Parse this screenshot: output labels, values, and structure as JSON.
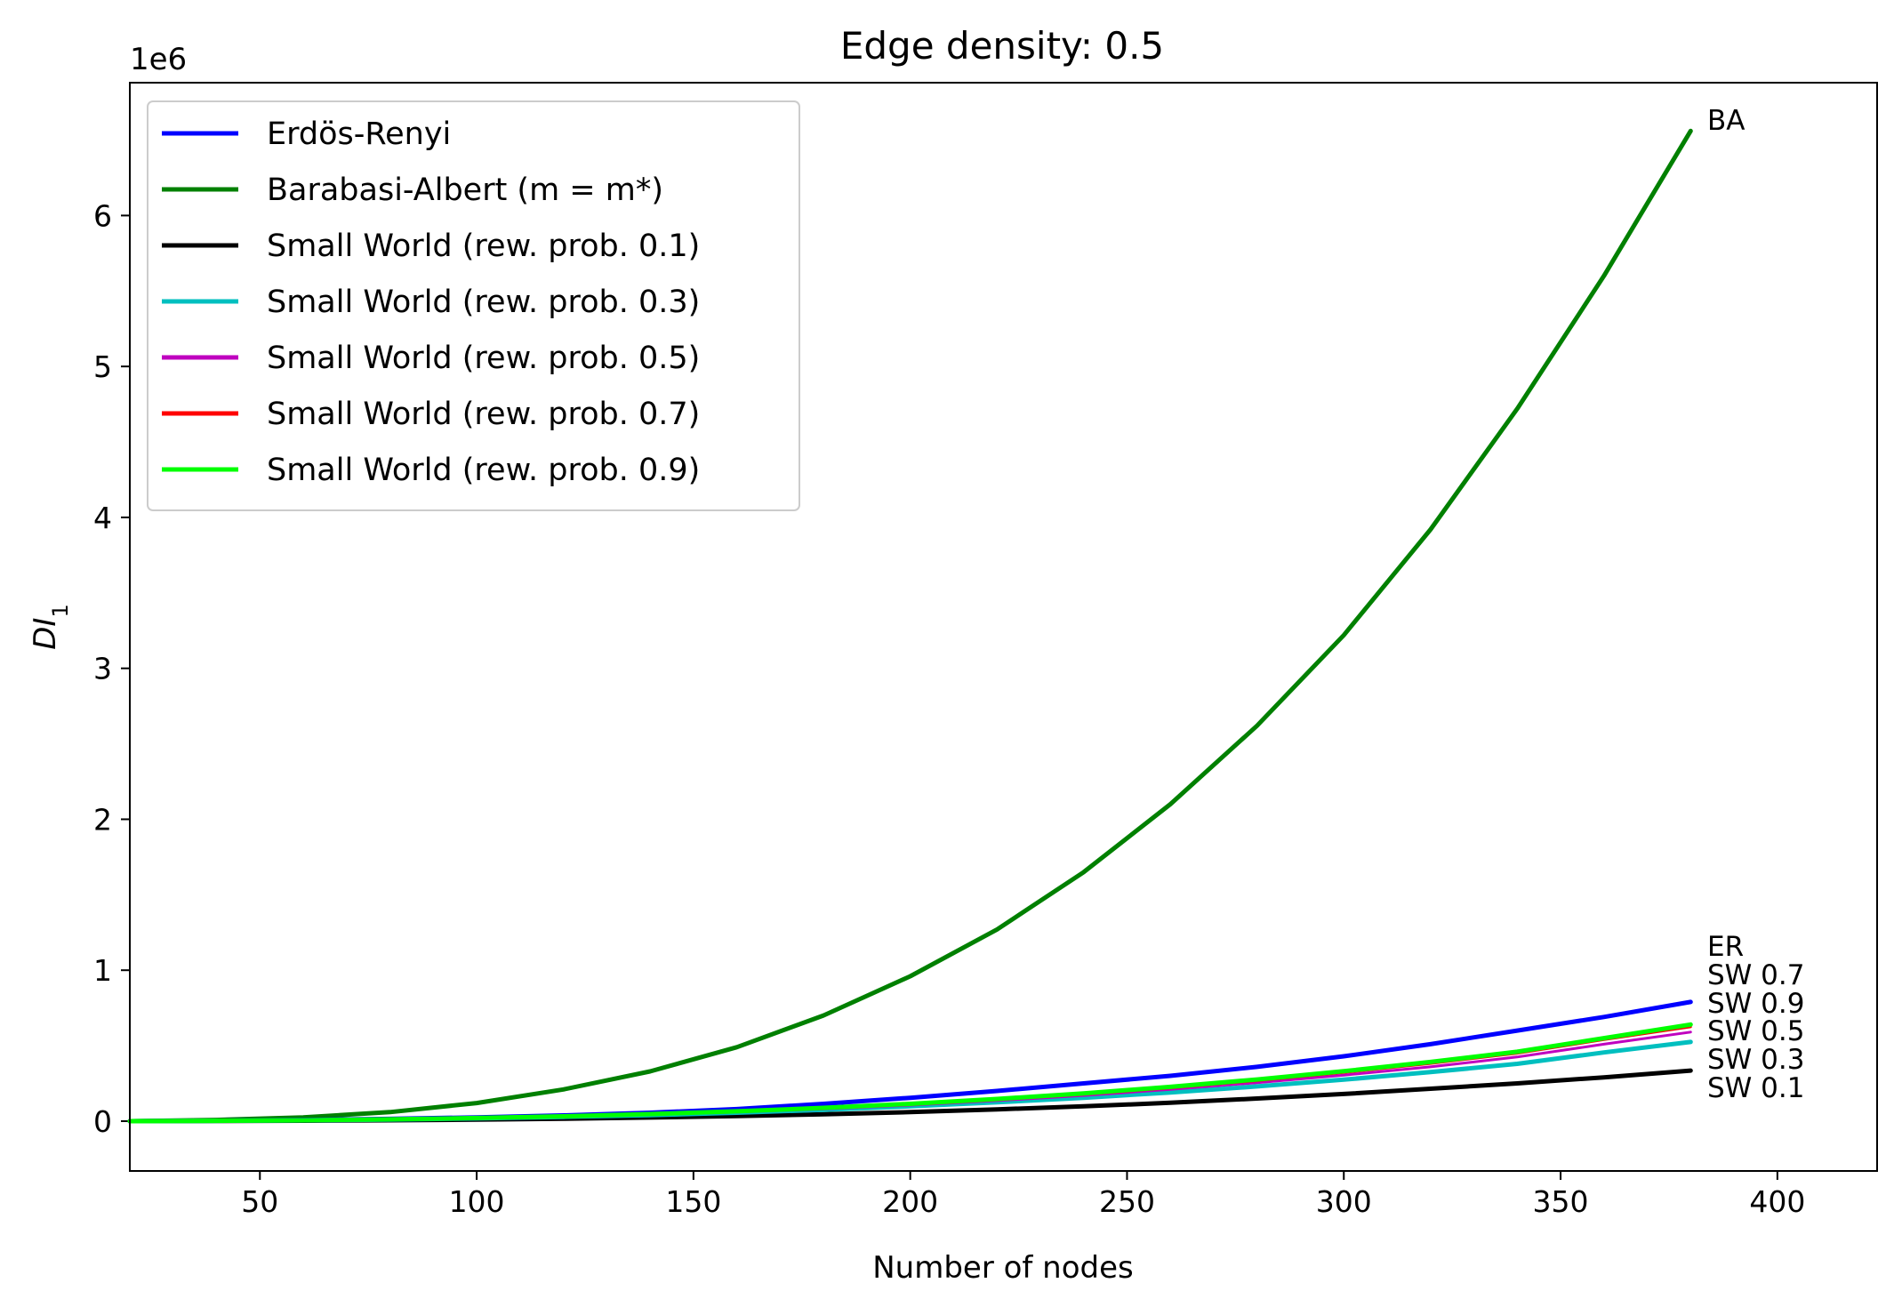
{
  "chart_data": {
    "type": "line",
    "title": "Edge density: 0.5",
    "xlabel": "Number of nodes",
    "ylabel": "DI",
    "ylabel_subscript": "1",
    "y_offset_text": "1e6",
    "xlim": [
      20,
      423
    ],
    "ylim": [
      -330000,
      6880000
    ],
    "x_ticks": [
      50,
      100,
      150,
      200,
      250,
      300,
      350,
      400
    ],
    "y_ticks": [
      0,
      1,
      2,
      3,
      4,
      5,
      6
    ],
    "y_tick_scale": 1000000,
    "legend_position": "upper-left",
    "x": [
      20,
      40,
      60,
      80,
      100,
      120,
      140,
      160,
      180,
      200,
      220,
      240,
      260,
      280,
      300,
      320,
      340,
      360,
      380
    ],
    "series": [
      {
        "name": "Erdös-Renyi",
        "color": "#0000ff",
        "values": [
          0,
          3000,
          8000,
          15000,
          25000,
          38000,
          56000,
          80000,
          115000,
          155000,
          200000,
          250000,
          300000,
          360000,
          430000,
          510000,
          600000,
          690000,
          790000
        ]
      },
      {
        "name": "Barabasi-Albert (m = m*)",
        "color": "#008000",
        "values": [
          0,
          8000,
          25000,
          60000,
          120000,
          210000,
          330000,
          490000,
          700000,
          960000,
          1270000,
          1650000,
          2100000,
          2620000,
          3220000,
          3920000,
          4720000,
          5600000,
          6560000
        ]
      },
      {
        "name": "Small World (rew. prob. 0.1)",
        "color": "#000000",
        "values": [
          0,
          1000,
          3000,
          6000,
          10000,
          16000,
          24000,
          34000,
          46000,
          60000,
          78000,
          98000,
          122000,
          150000,
          180000,
          215000,
          250000,
          290000,
          335000
        ]
      },
      {
        "name": "Small World (rew. prob. 0.3)",
        "color": "#00bfbf",
        "values": [
          0,
          2000,
          5000,
          10000,
          18000,
          28000,
          40000,
          56000,
          75000,
          98000,
          125000,
          155000,
          190000,
          230000,
          275000,
          325000,
          380000,
          455000,
          525000
        ]
      },
      {
        "name": "Small World (rew. prob. 0.5)",
        "color": "#bf00bf",
        "values": [
          0,
          2200,
          5600,
          11000,
          19500,
          30000,
          43000,
          60000,
          81000,
          106000,
          136000,
          170000,
          210000,
          255000,
          305000,
          360000,
          425000,
          510000,
          590000
        ]
      },
      {
        "name": "Small World (rew. prob. 0.7)",
        "color": "#ff0000",
        "values": [
          0,
          2300,
          5800,
          11500,
          20500,
          31500,
          45500,
          63000,
          85000,
          111000,
          142000,
          178000,
          220000,
          268000,
          322000,
          382000,
          450000,
          540000,
          625000
        ]
      },
      {
        "name": "Small World (rew. prob. 0.9)",
        "color": "#00ff00",
        "values": [
          0,
          2400,
          6000,
          12000,
          21000,
          32500,
          47000,
          65000,
          88000,
          115000,
          147000,
          184000,
          227000,
          276000,
          331000,
          392000,
          460000,
          550000,
          640000
        ]
      }
    ],
    "end_labels": [
      "BA",
      "ER",
      "SW 0.7",
      "SW 0.9",
      "SW 0.5",
      "SW 0.3",
      "SW 0.1"
    ]
  }
}
